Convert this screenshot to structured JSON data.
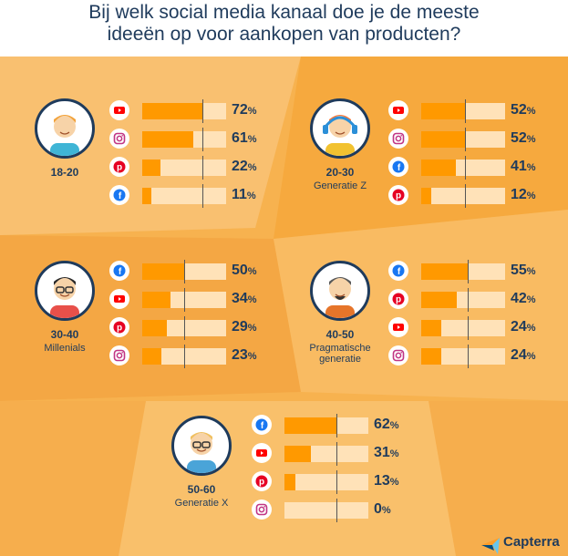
{
  "title_line1": "Bij welk social media kanaal doe je de meeste",
  "title_line2": "ideeën op voor aankopen van producten?",
  "colors": {
    "accent": "#ff9900",
    "track": "#ffe2b8",
    "text": "#1f3b5c",
    "youtube": "#ff0000",
    "instagram": "#c13584",
    "pinterest": "#e60023",
    "facebook": "#1877f2"
  },
  "brand": "Capterra",
  "groups": [
    {
      "age": "18-20",
      "generation": "",
      "bars": [
        {
          "icon": "youtube-icon",
          "value": 72
        },
        {
          "icon": "instagram-icon",
          "value": 61
        },
        {
          "icon": "pinterest-icon",
          "value": 22
        },
        {
          "icon": "facebook-icon",
          "value": 11
        }
      ]
    },
    {
      "age": "20-30",
      "generation": "Generatie Z",
      "bars": [
        {
          "icon": "youtube-icon",
          "value": 52
        },
        {
          "icon": "instagram-icon",
          "value": 52
        },
        {
          "icon": "facebook-icon",
          "value": 41
        },
        {
          "icon": "pinterest-icon",
          "value": 12
        }
      ]
    },
    {
      "age": "30-40",
      "generation": "Millenials",
      "bars": [
        {
          "icon": "facebook-icon",
          "value": 50
        },
        {
          "icon": "youtube-icon",
          "value": 34
        },
        {
          "icon": "pinterest-icon",
          "value": 29
        },
        {
          "icon": "instagram-icon",
          "value": 23
        }
      ]
    },
    {
      "age": "40-50",
      "generation": "Pragmatische generatie",
      "bars": [
        {
          "icon": "facebook-icon",
          "value": 55
        },
        {
          "icon": "pinterest-icon",
          "value": 42
        },
        {
          "icon": "youtube-icon",
          "value": 24
        },
        {
          "icon": "instagram-icon",
          "value": 24
        }
      ]
    },
    {
      "age": "50-60",
      "generation": "Generatie X",
      "bars": [
        {
          "icon": "facebook-icon",
          "value": 62
        },
        {
          "icon": "youtube-icon",
          "value": 31
        },
        {
          "icon": "pinterest-icon",
          "value": 13
        },
        {
          "icon": "instagram-icon",
          "value": 0
        }
      ]
    }
  ],
  "chart_data": {
    "type": "bar",
    "title": "Bij welk social media kanaal doe je de meeste ideeën op voor aankopen van producten?",
    "unit": "%",
    "groups": [
      {
        "name": "18-20",
        "categories": [
          "YouTube",
          "Instagram",
          "Pinterest",
          "Facebook"
        ],
        "values": [
          72,
          61,
          22,
          11
        ]
      },
      {
        "name": "20-30 Generatie Z",
        "categories": [
          "YouTube",
          "Instagram",
          "Facebook",
          "Pinterest"
        ],
        "values": [
          52,
          52,
          41,
          12
        ]
      },
      {
        "name": "30-40 Millenials",
        "categories": [
          "Facebook",
          "YouTube",
          "Pinterest",
          "Instagram"
        ],
        "values": [
          50,
          34,
          29,
          23
        ]
      },
      {
        "name": "40-50 Pragmatische generatie",
        "categories": [
          "Facebook",
          "Pinterest",
          "YouTube",
          "Instagram"
        ],
        "values": [
          55,
          42,
          24,
          24
        ]
      },
      {
        "name": "50-60 Generatie X",
        "categories": [
          "Facebook",
          "YouTube",
          "Pinterest",
          "Instagram"
        ],
        "values": [
          62,
          31,
          13,
          0
        ]
      }
    ],
    "ylim": [
      0,
      100
    ]
  }
}
